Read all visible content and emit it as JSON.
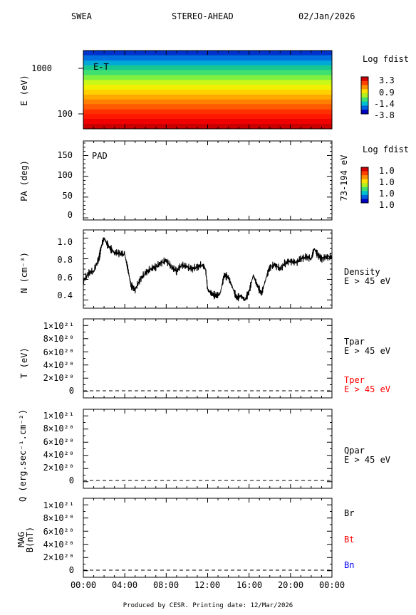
{
  "header": {
    "instrument": "SWEA",
    "spacecraft": "STEREO-AHEAD",
    "date": "02/Jan/2026"
  },
  "footer": "Produced by CESR.   Printing date: 12/Mar/2026",
  "colors": {
    "black": "#000000",
    "red": "#ff0000",
    "blue": "#0000ff"
  },
  "chart_data": [
    {
      "type": "heatmap",
      "panel": "energy-time",
      "annotation": "E-T",
      "ylabel": "E (eV)",
      "yscale": "log",
      "ylim": [
        50,
        2000
      ],
      "yticks": [
        "100",
        "1000"
      ],
      "colorbar": {
        "title": "Log fdist",
        "labels": [
          "3.3",
          "0.9",
          "-1.4",
          "-3.8"
        ]
      },
      "bands": [
        {
          "e_low": 1600,
          "e_high": 2000,
          "color": "#0033cc"
        },
        {
          "e_low": 1250,
          "e_high": 1600,
          "color": "#0070e0"
        },
        {
          "e_low": 1000,
          "e_high": 1250,
          "color": "#00a8d8"
        },
        {
          "e_low": 800,
          "e_high": 1000,
          "color": "#18c890"
        },
        {
          "e_low": 630,
          "e_high": 800,
          "color": "#40e070"
        },
        {
          "e_low": 500,
          "e_high": 630,
          "color": "#80f040"
        },
        {
          "e_low": 400,
          "e_high": 500,
          "color": "#c8f818"
        },
        {
          "e_low": 315,
          "e_high": 400,
          "color": "#f0f000"
        },
        {
          "e_low": 250,
          "e_high": 315,
          "color": "#ffd000"
        },
        {
          "e_low": 200,
          "e_high": 250,
          "color": "#ffa800"
        },
        {
          "e_low": 160,
          "e_high": 200,
          "color": "#ff8000"
        },
        {
          "e_low": 125,
          "e_high": 160,
          "color": "#ff5a00"
        },
        {
          "e_low": 100,
          "e_high": 125,
          "color": "#ff3000"
        },
        {
          "e_low": 80,
          "e_high": 100,
          "color": "#ff1800"
        },
        {
          "e_low": 63,
          "e_high": 80,
          "color": "#f00000"
        },
        {
          "e_low": 50,
          "e_high": 63,
          "color": "#c80000"
        }
      ]
    },
    {
      "type": "heatmap",
      "panel": "pitch-angle",
      "annotation": "PAD",
      "ylabel": "PA (deg)",
      "ylim": [
        -5,
        185
      ],
      "yticks": [
        "0",
        "50",
        "100",
        "150"
      ],
      "right_label": "73-194 eV",
      "colorbar": {
        "title": "Log fdist",
        "labels": [
          "1.0",
          "1.0",
          "1.0",
          "1.0"
        ]
      }
    },
    {
      "type": "line",
      "panel": "density",
      "ylabel": "N (cm⁻³)",
      "ylim": [
        0.32,
        1.08
      ],
      "yticks": [
        "0.4",
        "0.6",
        "0.8",
        "1.0"
      ],
      "series": [
        {
          "name": "Density",
          "sublabel": "E > 45 eV",
          "color": "#000000"
        }
      ],
      "x": [
        0,
        0.5,
        1,
        1.5,
        1.8,
        2,
        2.3,
        2.6,
        3,
        3.5,
        4,
        4.3,
        4.6,
        5,
        5.5,
        6,
        6.5,
        7,
        7.5,
        8,
        8.5,
        9,
        9.5,
        10,
        10.5,
        11,
        11.5,
        11.8,
        12,
        12.4,
        12.8,
        13.2,
        13.6,
        14,
        14.4,
        14.8,
        15.2,
        15.6,
        16,
        16.4,
        16.8,
        17.2,
        17.6,
        18,
        18.5,
        19,
        19.5,
        20,
        20.5,
        21,
        21.5,
        22,
        22.3,
        22.6,
        23,
        23.5,
        24
      ],
      "y": [
        0.58,
        0.66,
        0.68,
        0.8,
        0.95,
        1.0,
        0.94,
        0.9,
        0.86,
        0.85,
        0.84,
        0.7,
        0.54,
        0.5,
        0.6,
        0.66,
        0.7,
        0.72,
        0.76,
        0.78,
        0.72,
        0.68,
        0.74,
        0.72,
        0.7,
        0.72,
        0.74,
        0.7,
        0.5,
        0.46,
        0.44,
        0.46,
        0.64,
        0.62,
        0.52,
        0.42,
        0.44,
        0.4,
        0.48,
        0.64,
        0.54,
        0.46,
        0.6,
        0.72,
        0.74,
        0.7,
        0.76,
        0.78,
        0.76,
        0.8,
        0.82,
        0.8,
        0.9,
        0.84,
        0.8,
        0.82,
        0.82
      ]
    },
    {
      "type": "line",
      "panel": "temperature",
      "ylabel": "T (eV)",
      "ylim": [
        -1e+20,
        1.1e+21
      ],
      "yticks": [
        "0",
        "2×10²⁰",
        "4×10²⁰",
        "6×10²⁰",
        "8×10²⁰",
        "1×10²¹"
      ],
      "series": [
        {
          "name": "Tpar",
          "sublabel": "E > 45 eV",
          "color": "#000000"
        },
        {
          "name": "Tper",
          "sublabel": "E > 45 eV",
          "color": "#ff0000"
        }
      ],
      "zero_line": true
    },
    {
      "type": "line",
      "panel": "heat-flux",
      "ylabel": "Q (erg.sec⁻¹.cm⁻²)",
      "ylim": [
        -1e+20,
        1.1e+21
      ],
      "yticks": [
        "0",
        "2×10²⁰",
        "4×10²⁰",
        "6×10²⁰",
        "8×10²⁰",
        "1×10²¹"
      ],
      "series": [
        {
          "name": "Qpar",
          "sublabel": "E > 45 eV",
          "color": "#000000"
        }
      ],
      "zero_line": true
    },
    {
      "type": "line",
      "panel": "magnetic-field",
      "ylabel": "MAG",
      "ylabel2": "B(nT)",
      "ylim": [
        -1e+20,
        1.1e+21
      ],
      "yticks": [
        "0",
        "2×10²⁰",
        "4×10²⁰",
        "6×10²⁰",
        "8×10²⁰",
        "1×10²¹"
      ],
      "series": [
        {
          "name": "Br",
          "color": "#000000"
        },
        {
          "name": "Bt",
          "color": "#ff0000"
        },
        {
          "name": "Bn",
          "color": "#0000ff"
        }
      ],
      "zero_line": true,
      "xticks": [
        "00:00",
        "04:00",
        "08:00",
        "12:00",
        "16:00",
        "20:00",
        "00:00"
      ]
    }
  ]
}
